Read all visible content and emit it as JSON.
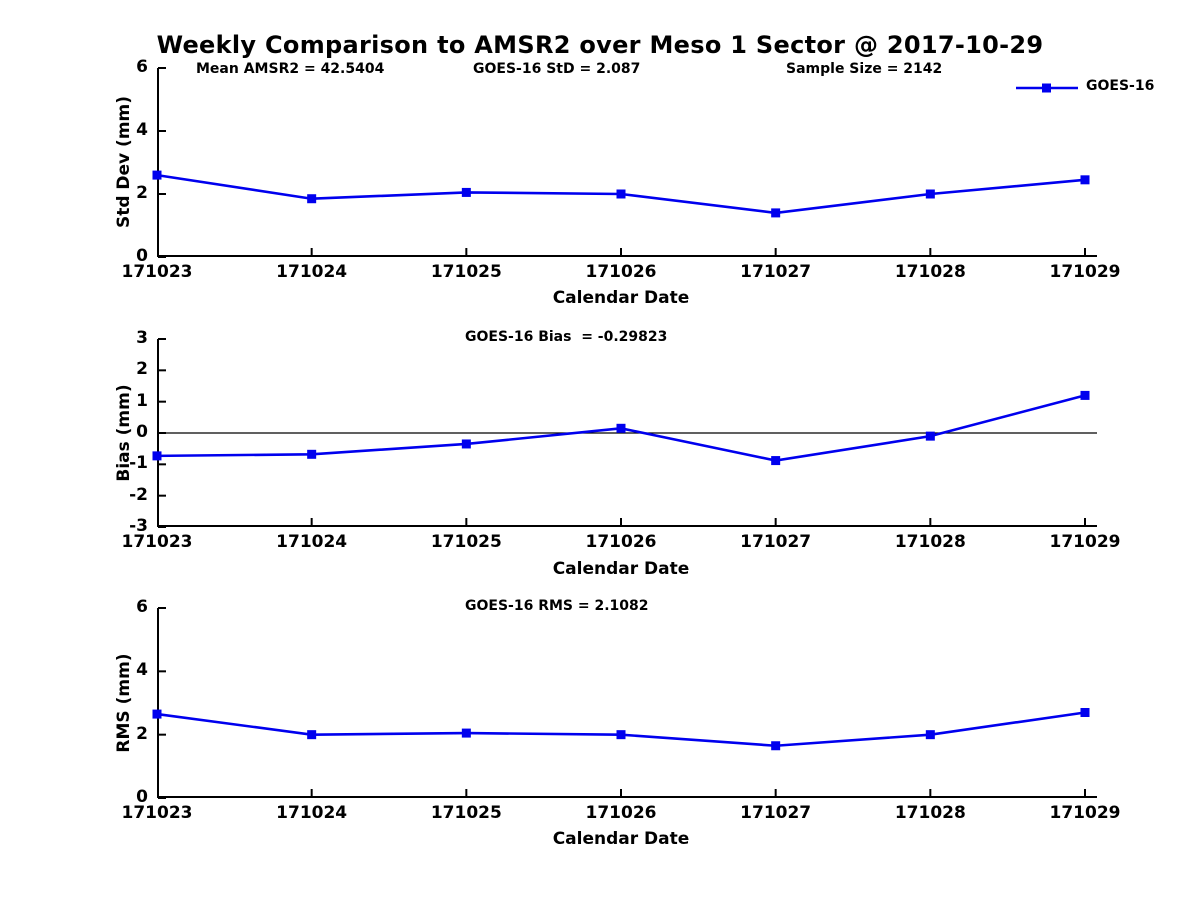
{
  "figure": {
    "title": "Weekly Comparison to AMSR2 over Meso 1 Sector @ 2017-10-29",
    "legend_label": "GOES-16",
    "colors": {
      "line": "#0000EE",
      "axis": "#000000",
      "background": "#FFFFFF"
    }
  },
  "chart_data": [
    {
      "type": "line",
      "panel": "std-dev",
      "annotations": [
        "Mean AMSR2 = 42.5404",
        "GOES-16 StD = 2.087",
        "Sample Size = 2142"
      ],
      "x_ticklabels": [
        "171023",
        "171024",
        "171025",
        "171026",
        "171027",
        "171028",
        "171029"
      ],
      "xlabel": "Calendar Date",
      "ylabel": "Std Dev (mm)",
      "ylim": [
        0,
        6
      ],
      "yticks": [
        0,
        2,
        4,
        6
      ],
      "zero_line": false,
      "legend_position": "top-right-outside",
      "grid": false,
      "series": [
        {
          "name": "GOES-16",
          "values": [
            2.6,
            1.85,
            2.05,
            2.0,
            1.4,
            2.0,
            2.45
          ]
        }
      ]
    },
    {
      "type": "line",
      "panel": "bias",
      "title": "GOES-16 Bias  = -0.29823",
      "x_ticklabels": [
        "171023",
        "171024",
        "171025",
        "171026",
        "171027",
        "171028",
        "171029"
      ],
      "xlabel": "Calendar Date",
      "ylabel": "Bias (mm)",
      "ylim": [
        -3,
        3
      ],
      "yticks": [
        3,
        2,
        1,
        0,
        -1,
        -2,
        -3
      ],
      "zero_line": true,
      "grid": false,
      "series": [
        {
          "name": "GOES-16",
          "values": [
            -0.73,
            -0.68,
            -0.35,
            0.15,
            -0.88,
            -0.1,
            1.2
          ]
        }
      ]
    },
    {
      "type": "line",
      "panel": "rms",
      "title": "GOES-16 RMS = 2.1082",
      "x_ticklabels": [
        "171023",
        "171024",
        "171025",
        "171026",
        "171027",
        "171028",
        "171029"
      ],
      "xlabel": "Calendar Date",
      "ylabel": "RMS (mm)",
      "ylim": [
        0,
        6
      ],
      "yticks": [
        0,
        2,
        4,
        6
      ],
      "zero_line": false,
      "grid": false,
      "series": [
        {
          "name": "GOES-16",
          "values": [
            2.65,
            2.0,
            2.05,
            2.0,
            1.65,
            2.0,
            2.7
          ]
        }
      ]
    }
  ]
}
